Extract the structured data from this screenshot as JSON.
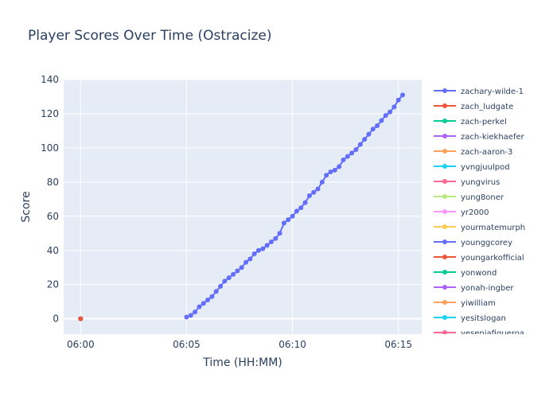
{
  "chart_data": {
    "type": "line",
    "title": "Player Scores Over Time (Ostracize)",
    "xlabel": "Time (HH:MM)",
    "ylabel": "Score",
    "x_ticks": [
      "06:00",
      "06:05",
      "06:10",
      "06:15"
    ],
    "x_tick_minutes": [
      0,
      5,
      10,
      15
    ],
    "xlim_minutes": [
      -0.8,
      16.1
    ],
    "y_ticks": [
      0,
      20,
      40,
      60,
      80,
      100,
      120,
      140
    ],
    "ylim": [
      -9,
      140
    ],
    "grid": true,
    "legend_position": "right",
    "legend_scrollable": true,
    "series": [
      {
        "name": "zachary-wilde-1",
        "color": "#636efa",
        "x": [
          5.0,
          5.2,
          5.4,
          5.6,
          5.8,
          6.0,
          6.2,
          6.4,
          6.6,
          6.8,
          7.0,
          7.2,
          7.4,
          7.6,
          7.8,
          8.0,
          8.2,
          8.4,
          8.6,
          8.8,
          9.0,
          9.2,
          9.4,
          9.6,
          9.8,
          10.0,
          10.2,
          10.4,
          10.6,
          10.8,
          11.0,
          11.2,
          11.4,
          11.6,
          11.8,
          12.0,
          12.2,
          12.4,
          12.6,
          12.8,
          13.0,
          13.2,
          13.4,
          13.6,
          13.8,
          14.0,
          14.2,
          14.4,
          14.6,
          14.8,
          15.0,
          15.2
        ],
        "y": [
          1,
          2,
          4,
          7,
          9,
          11,
          13,
          16,
          19,
          22,
          24,
          26,
          28,
          30,
          33,
          35,
          38,
          40,
          41,
          43,
          45,
          47,
          50,
          56,
          58,
          60,
          63,
          65,
          68,
          72,
          74,
          76,
          80,
          84,
          86,
          87,
          89,
          93,
          95,
          97,
          99,
          102,
          105,
          108,
          111,
          113,
          116,
          119,
          121,
          124,
          128,
          131
        ]
      },
      {
        "name": "zach_ludgate",
        "color": "#ef553b",
        "x": [
          0
        ],
        "y": [
          0
        ]
      },
      {
        "name": "zach-perkel",
        "color": "#00cc96",
        "x": [
          0
        ],
        "y": [
          0
        ]
      },
      {
        "name": "zach-kiekhaefer",
        "color": "#ab63fa",
        "x": [
          0
        ],
        "y": [
          0
        ]
      },
      {
        "name": "zach-aaron-3",
        "color": "#ffa15a",
        "x": [
          0
        ],
        "y": [
          0
        ]
      },
      {
        "name": "yvngjuulpod",
        "color": "#19d3f3",
        "x": [
          0
        ],
        "y": [
          0
        ]
      },
      {
        "name": "yungvirus",
        "color": "#ff6692",
        "x": [
          0
        ],
        "y": [
          0
        ]
      },
      {
        "name": "yung8oner",
        "color": "#b6e880",
        "x": [
          0
        ],
        "y": [
          0
        ]
      },
      {
        "name": "yr2000",
        "color": "#ff97ff",
        "x": [
          0
        ],
        "y": [
          0
        ]
      },
      {
        "name": "yourmatemurph",
        "color": "#fecb52",
        "x": [
          0
        ],
        "y": [
          0
        ]
      },
      {
        "name": "younggcorey",
        "color": "#636efa",
        "x": [
          0
        ],
        "y": [
          0
        ]
      },
      {
        "name": "youngarkofficial",
        "color": "#ef553b",
        "x": [
          0
        ],
        "y": [
          0
        ]
      },
      {
        "name": "yonwond",
        "color": "#00cc96",
        "x": [
          0
        ],
        "y": [
          0
        ]
      },
      {
        "name": "yonah-ingber",
        "color": "#ab63fa",
        "x": [
          0
        ],
        "y": [
          0
        ]
      },
      {
        "name": "yiwilliam",
        "color": "#ffa15a",
        "x": [
          0
        ],
        "y": [
          0
        ]
      },
      {
        "name": "yesitslogan",
        "color": "#19d3f3",
        "x": [
          0
        ],
        "y": [
          0
        ]
      },
      {
        "name": "yeseniafigueroa",
        "color": "#ff6692",
        "x": [
          0
        ],
        "y": [
          0
        ]
      }
    ]
  }
}
